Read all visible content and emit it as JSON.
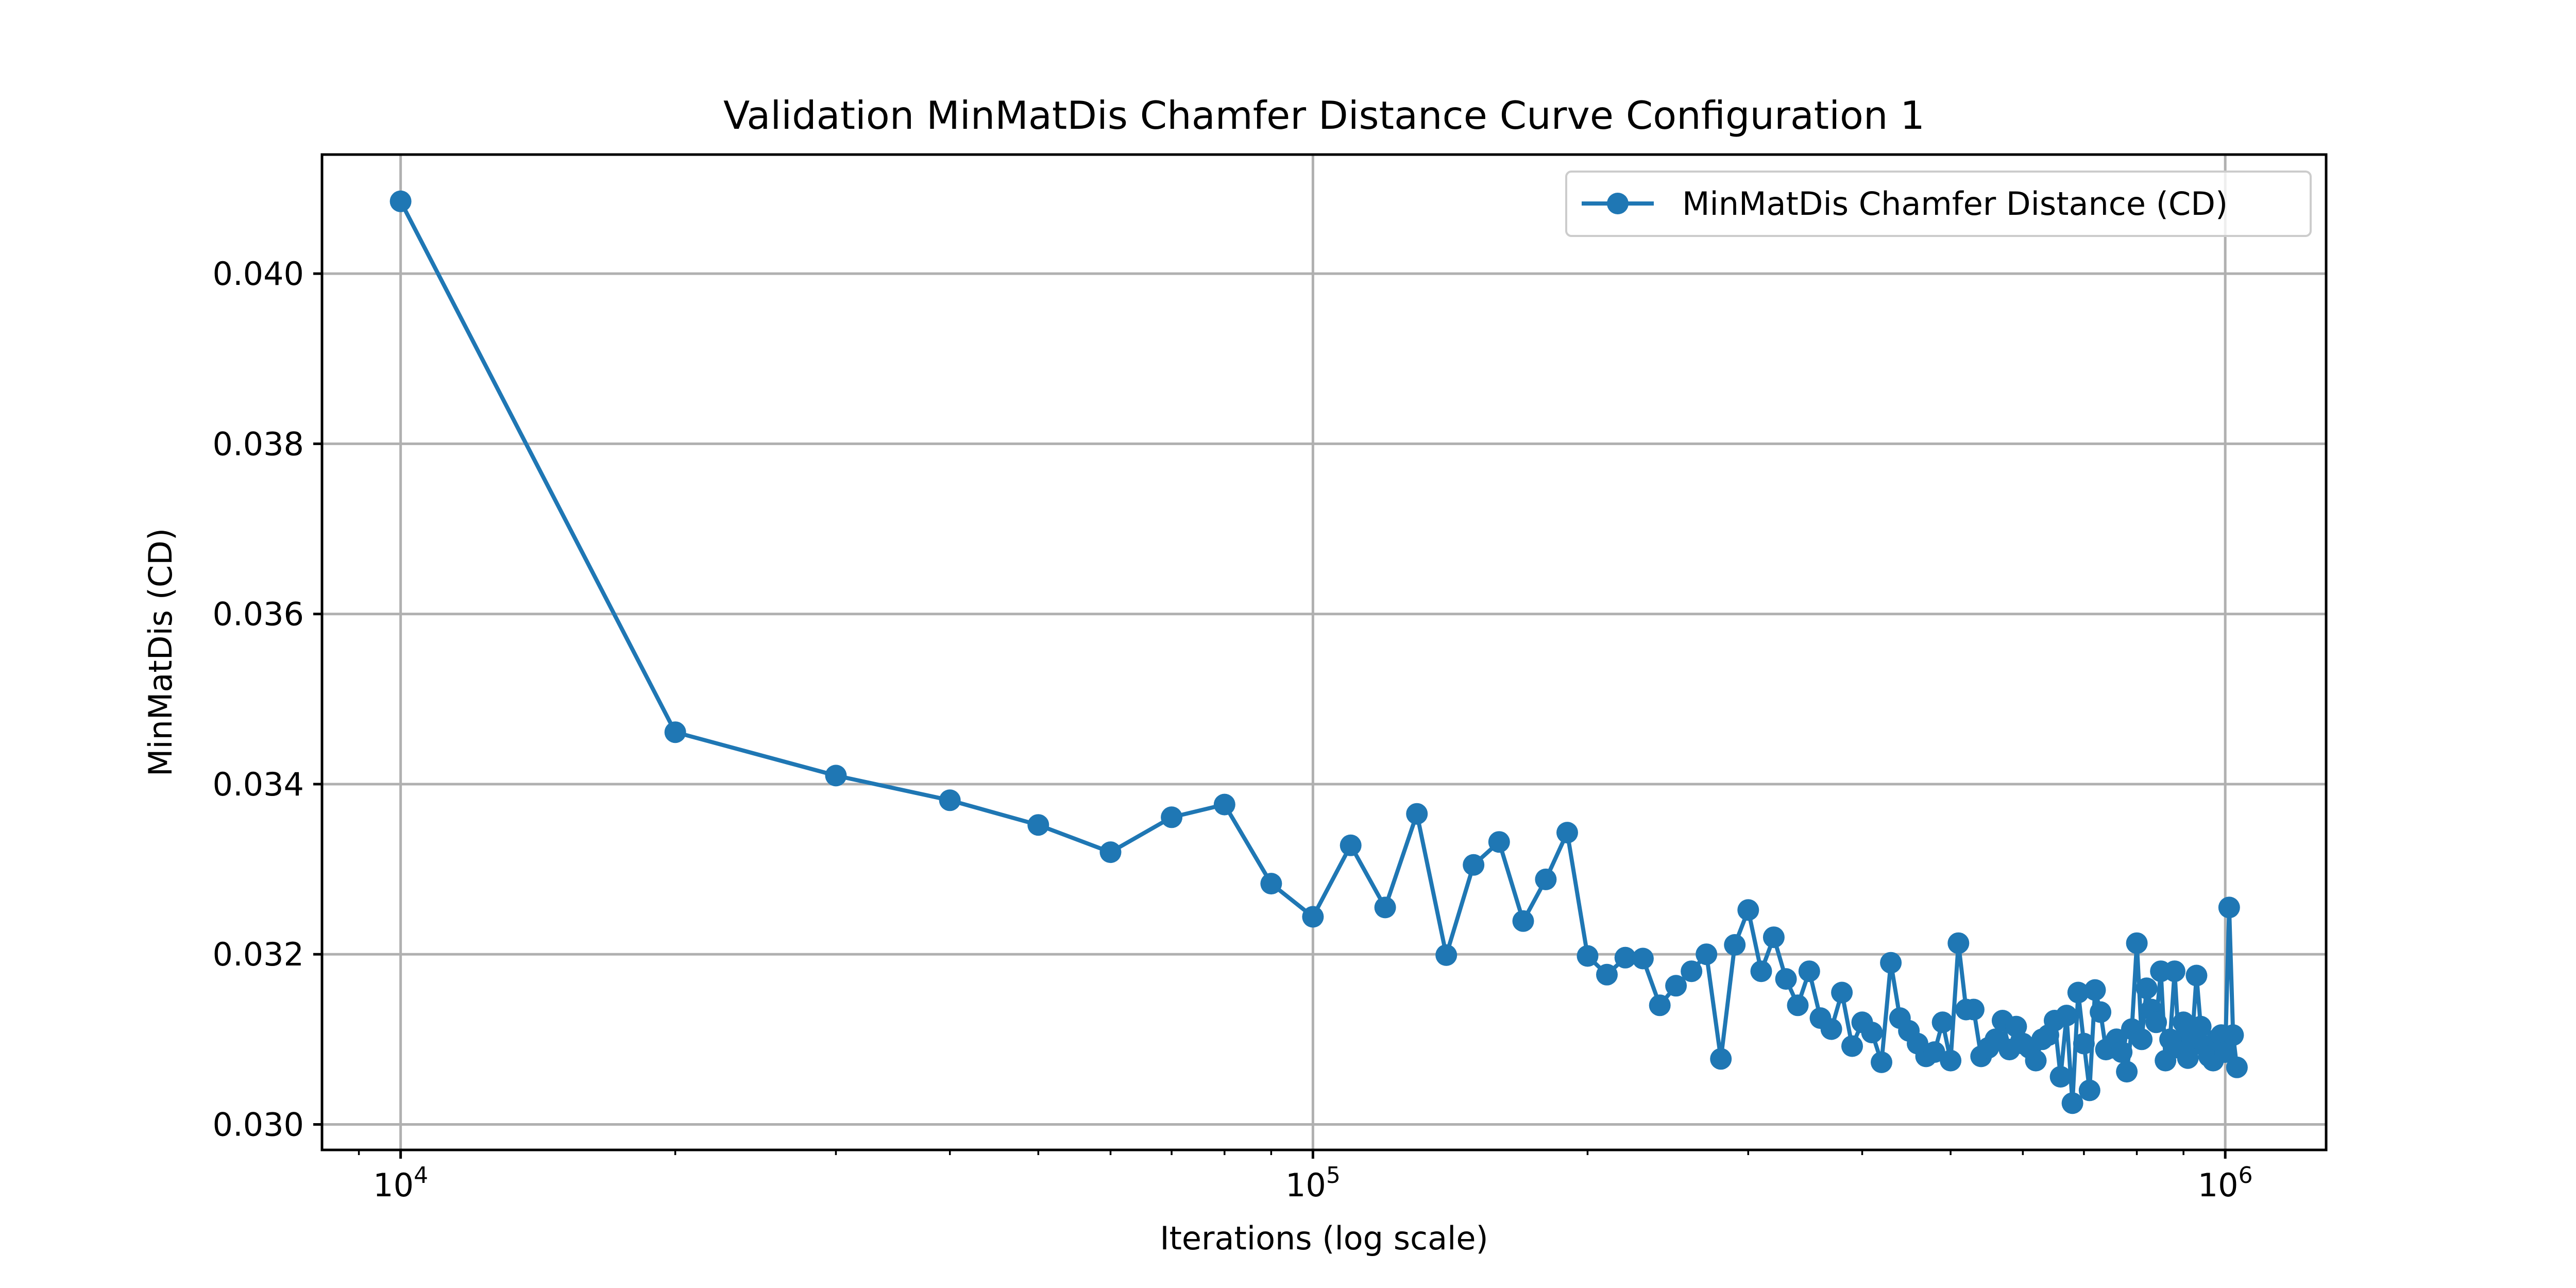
{
  "chart_data": {
    "type": "line",
    "title": "Validation MinMatDis Chamfer Distance Curve Configuration 1",
    "xlabel": "Iterations (log scale)",
    "ylabel": "MinMatDis (CD)",
    "xscale": "log",
    "xlim": [
      8200,
      1290000
    ],
    "ylim": [
      0.0297,
      0.0414
    ],
    "xticks": [
      {
        "value": 10000,
        "base": "10",
        "exp": "4"
      },
      {
        "value": 100000,
        "base": "10",
        "exp": "5"
      },
      {
        "value": 1000000,
        "base": "10",
        "exp": "6"
      }
    ],
    "yticks": [
      {
        "value": 0.03,
        "label": "0.030"
      },
      {
        "value": 0.032,
        "label": "0.032"
      },
      {
        "value": 0.034,
        "label": "0.034"
      },
      {
        "value": 0.036,
        "label": "0.036"
      },
      {
        "value": 0.038,
        "label": "0.038"
      },
      {
        "value": 0.04,
        "label": "0.040"
      }
    ],
    "grid": true,
    "legend": {
      "position": "upper right"
    },
    "series": [
      {
        "name": "MinMatDis Chamfer Distance (CD)",
        "color": "#1f77b4",
        "marker": "circle",
        "x": [
          10000,
          20000,
          30000,
          40000,
          50000,
          60000,
          70000,
          80000,
          90000,
          100000,
          110000,
          120000,
          130000,
          140000,
          150000,
          160000,
          170000,
          180000,
          190000,
          200000,
          210000,
          220000,
          230000,
          240000,
          250000,
          260000,
          270000,
          280000,
          290000,
          300000,
          310000,
          320000,
          330000,
          340000,
          350000,
          360000,
          370000,
          380000,
          390000,
          400000,
          410000,
          420000,
          430000,
          440000,
          450000,
          460000,
          470000,
          480000,
          490000,
          500000,
          510000,
          520000,
          530000,
          540000,
          550000,
          560000,
          570000,
          580000,
          590000,
          600000,
          610000,
          620000,
          630000,
          640000,
          650000,
          660000,
          670000,
          680000,
          690000,
          700000,
          710000,
          720000,
          730000,
          740000,
          750000,
          760000,
          770000,
          780000,
          790000,
          800000,
          810000,
          820000,
          830000,
          840000,
          850000,
          860000,
          870000,
          880000,
          890000,
          900000,
          910000,
          920000,
          930000,
          940000,
          950000,
          960000,
          970000,
          980000,
          990000,
          1000000,
          1010000,
          1020000,
          1030000
        ],
        "y": [
          0.04085,
          0.03461,
          0.0341,
          0.03381,
          0.03352,
          0.0332,
          0.03361,
          0.03376,
          0.03283,
          0.03244,
          0.03328,
          0.03255,
          0.03365,
          0.03199,
          0.03305,
          0.03332,
          0.03239,
          0.03288,
          0.03343,
          0.03198,
          0.03176,
          0.03196,
          0.03195,
          0.0314,
          0.03163,
          0.0318,
          0.032,
          0.03077,
          0.03211,
          0.03252,
          0.0318,
          0.0322,
          0.03171,
          0.0314,
          0.0318,
          0.03125,
          0.03112,
          0.03155,
          0.03092,
          0.0312,
          0.03108,
          0.03073,
          0.0319,
          0.03125,
          0.0311,
          0.03095,
          0.0308,
          0.03085,
          0.0312,
          0.03075,
          0.03213,
          0.03135,
          0.03135,
          0.0308,
          0.0309,
          0.031,
          0.03122,
          0.03088,
          0.03115,
          0.03095,
          0.0309,
          0.03075,
          0.031,
          0.03105,
          0.03122,
          0.03056,
          0.03128,
          0.03025,
          0.03155,
          0.03095,
          0.0304,
          0.03158,
          0.03132,
          0.03088,
          0.0309,
          0.031,
          0.03085,
          0.03062,
          0.03112,
          0.03213,
          0.031,
          0.0316,
          0.03135,
          0.0312,
          0.0318,
          0.03075,
          0.031,
          0.0318,
          0.0309,
          0.0312,
          0.03078,
          0.031,
          0.03175,
          0.03115,
          0.03092,
          0.0308,
          0.03075,
          0.031,
          0.03105,
          0.03085,
          0.03255,
          0.03105,
          0.03067
        ]
      }
    ]
  }
}
